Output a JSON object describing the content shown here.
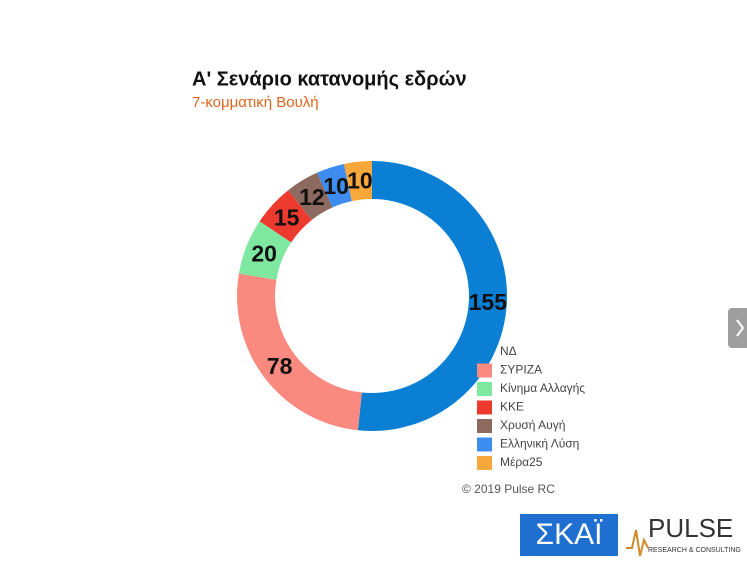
{
  "chart_data": {
    "type": "donut",
    "title": "Α' Σενάριο κατανομής εδρών",
    "subtitle": "7-κομματική Βουλή",
    "categories": [
      "ΝΔ",
      "ΣΥΡΙΖΑ",
      "Κίνημα Αλλαγής",
      "ΚΚΕ",
      "Χρυσή Αυγή",
      "Ελληνική Λύση",
      "Μέρα25"
    ],
    "values": [
      155,
      78,
      20,
      15,
      12,
      10,
      10
    ],
    "colors": [
      "#0a7fd4",
      "#fa8a80",
      "#7ee8a0",
      "#ee3a2e",
      "#8c6a60",
      "#3d8cf0",
      "#f8a83a"
    ],
    "legend": "bottom-right",
    "copyright": "© 2019 Pulse RC"
  },
  "logos": {
    "skai": "ΣΚΑΪ",
    "pulse": "PULSE",
    "pulse_tagline": "RESEARCH & CONSULTING"
  }
}
